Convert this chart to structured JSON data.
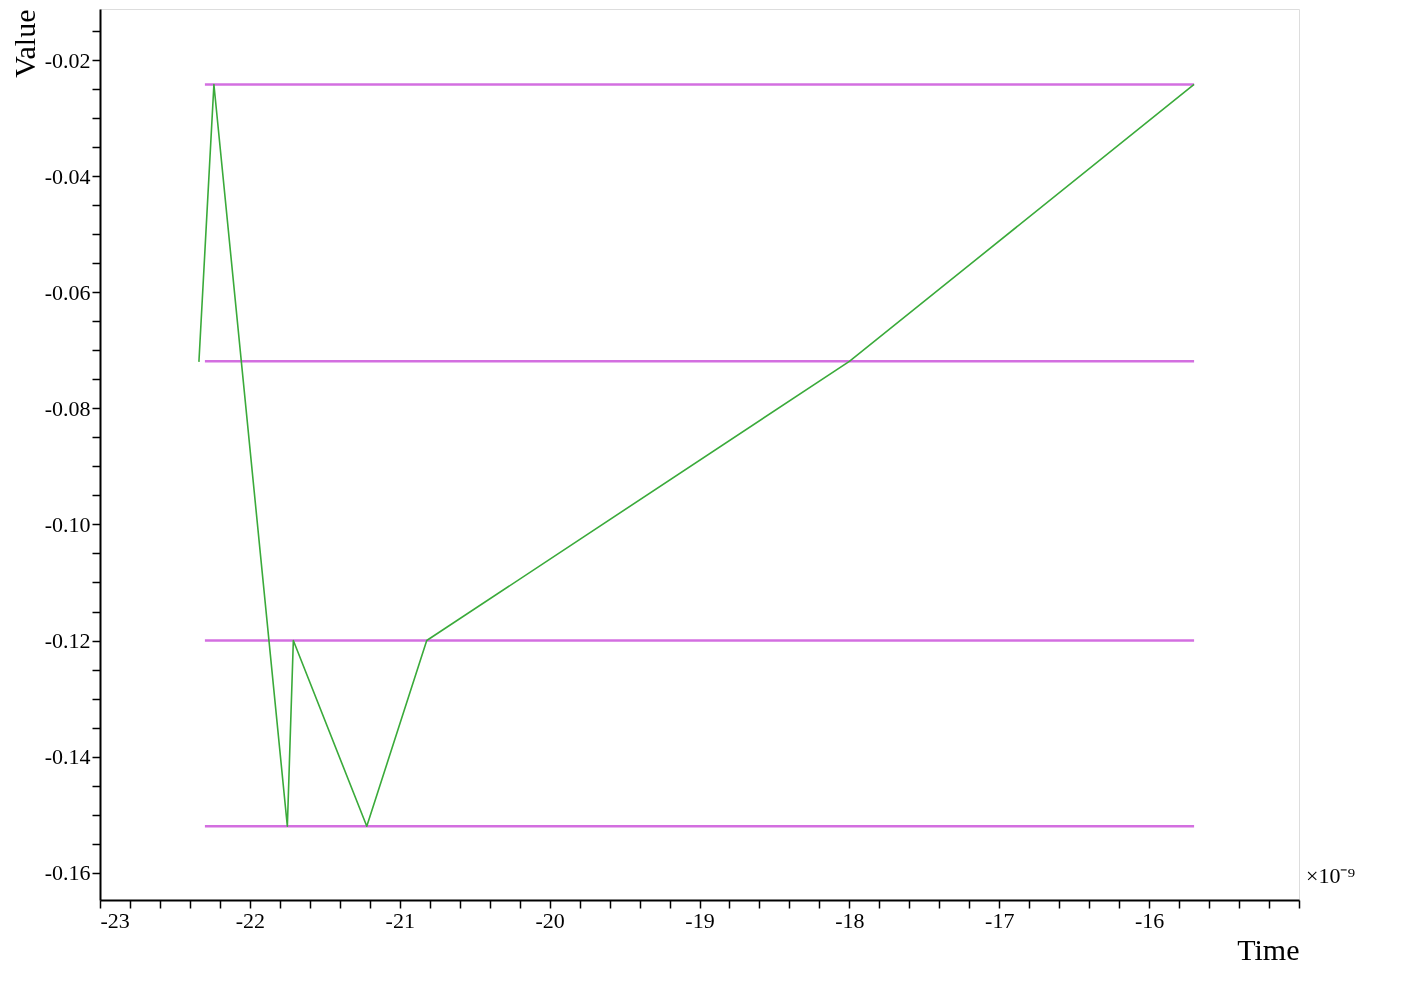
{
  "chart_data": {
    "type": "line",
    "xlabel": "Time",
    "ylabel": "Value",
    "annotations": [
      "×10⁻⁹"
    ],
    "xlim": [
      -23,
      -15
    ],
    "ylim": [
      -0.1647,
      -0.0112
    ],
    "xticks": [
      -23,
      {
        "value": -22.8,
        "label": null
      },
      {
        "value": -22.6,
        "label": null
      },
      {
        "value": -22.4,
        "label": null
      },
      {
        "value": -22.2,
        "label": null
      },
      -22,
      {
        "value": -21.8,
        "label": null
      },
      {
        "value": -21.6,
        "label": null
      },
      {
        "value": -21.4,
        "label": null
      },
      {
        "value": -21.2,
        "label": null
      },
      -21,
      {
        "value": -20.8,
        "label": null
      },
      {
        "value": -20.6,
        "label": null
      },
      {
        "value": -20.4,
        "label": null
      },
      {
        "value": -20.2,
        "label": null
      },
      -20,
      {
        "value": -19.8,
        "label": null
      },
      {
        "value": -19.6,
        "label": null
      },
      {
        "value": -19.4,
        "label": null
      },
      {
        "value": -19.2,
        "label": null
      },
      -19,
      {
        "value": -18.8,
        "label": null
      },
      {
        "value": -18.6,
        "label": null
      },
      {
        "value": -18.4,
        "label": null
      },
      {
        "value": -18.2,
        "label": null
      },
      -18,
      {
        "value": -17.8,
        "label": null
      },
      {
        "value": -17.6,
        "label": null
      },
      {
        "value": -17.4,
        "label": null
      },
      {
        "value": -17.2,
        "label": null
      },
      -17,
      {
        "value": -16.8,
        "label": null
      },
      {
        "value": -16.6,
        "label": null
      },
      {
        "value": -16.4,
        "label": null
      },
      {
        "value": -16.2,
        "label": null
      },
      -16,
      {
        "value": -15.8,
        "label": null
      },
      {
        "value": -15.6,
        "label": null
      },
      {
        "value": -15.4,
        "label": null
      },
      {
        "value": -15.2,
        "label": null
      },
      {
        "value": -15,
        "label": null
      }
    ],
    "yticks": [
      {
        "value": -0.16,
        "label": "-0.16"
      },
      {
        "value": -0.155,
        "label": null
      },
      {
        "value": -0.15,
        "label": null
      },
      {
        "value": -0.145,
        "label": null
      },
      {
        "value": -0.14,
        "label": "-0.14"
      },
      {
        "value": -0.135,
        "label": null
      },
      {
        "value": -0.13,
        "label": null
      },
      {
        "value": -0.125,
        "label": null
      },
      {
        "value": -0.12,
        "label": "-0.12"
      },
      {
        "value": -0.115,
        "label": null
      },
      {
        "value": -0.11,
        "label": null
      },
      {
        "value": -0.105,
        "label": null
      },
      {
        "value": -0.1,
        "label": "-0.10"
      },
      {
        "value": -0.095,
        "label": null
      },
      {
        "value": -0.09,
        "label": null
      },
      {
        "value": -0.085,
        "label": null
      },
      {
        "value": -0.08,
        "label": "-0.08"
      },
      {
        "value": -0.075,
        "label": null
      },
      {
        "value": -0.07,
        "label": null
      },
      {
        "value": -0.065,
        "label": null
      },
      {
        "value": -0.06,
        "label": "-0.06"
      },
      {
        "value": -0.055,
        "label": null
      },
      {
        "value": -0.05,
        "label": null
      },
      {
        "value": -0.045,
        "label": null
      },
      {
        "value": -0.04,
        "label": "-0.04"
      },
      {
        "value": -0.035,
        "label": null
      },
      {
        "value": -0.03,
        "label": null
      },
      {
        "value": -0.025,
        "label": null
      },
      {
        "value": -0.02,
        "label": "-0.02"
      },
      {
        "value": -0.015,
        "label": null
      }
    ],
    "grid": false,
    "marker": "none",
    "line_style": "solid",
    "series": [
      {
        "color": "#d36fe0",
        "x": [
          -22.3,
          -15.7
        ],
        "values": [
          -0.0242,
          -0.0242
        ]
      },
      {
        "color": "#d36fe0",
        "x": [
          -22.3,
          -15.7
        ],
        "values": [
          -0.0719,
          -0.0719
        ]
      },
      {
        "color": "#d36fe0",
        "x": [
          -22.3,
          -15.7
        ],
        "values": [
          -0.12,
          -0.12
        ]
      },
      {
        "color": "#d36fe0",
        "x": [
          -22.3,
          -15.7
        ],
        "values": [
          -0.152,
          -0.152
        ]
      },
      {
        "color": "#3aaa3a",
        "x": [
          -22.34,
          -22.24,
          -21.75,
          -21.71,
          -21.22,
          -20.82,
          -18.0,
          -15.7
        ],
        "values": [
          -0.072,
          -0.0242,
          -0.152,
          -0.12,
          -0.152,
          -0.12,
          -0.0719,
          -0.0242
        ]
      }
    ]
  }
}
